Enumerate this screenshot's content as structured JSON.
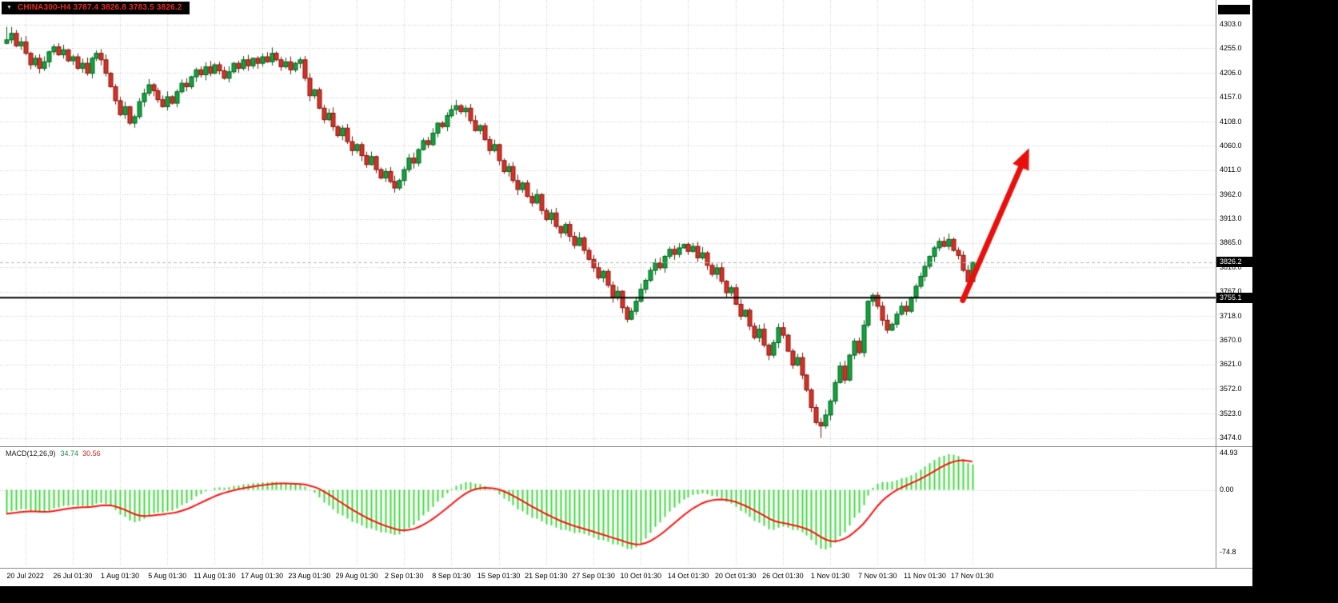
{
  "window": {
    "title_text": "CHINA300-H4 3787.4 3826.8 3783.5 3826.2",
    "symbol": "CHINA300",
    "timeframe": "H4"
  },
  "price_axis": {
    "labels": [
      "4303.0",
      "4255.0",
      "4206.0",
      "4157.0",
      "4108.0",
      "4060.0",
      "4011.0",
      "3962.0",
      "3913.0",
      "3865.0",
      "3816.0",
      "3767.0",
      "3718.0",
      "3670.0",
      "3621.0",
      "3572.0",
      "3523.0",
      "3474.0"
    ],
    "current_price_badge": "3826.2",
    "hline_badge": "3755.1"
  },
  "time_axis": {
    "labels": [
      "20 Jul 2022",
      "26 Jul 01:30",
      "1 Aug 01:30",
      "5 Aug 01:30",
      "11 Aug 01:30",
      "17 Aug 01:30",
      "23 Aug 01:30",
      "29 Aug 01:30",
      "2 Sep 01:30",
      "8 Sep 01:30",
      "15 Sep 01:30",
      "21 Sep 01:30",
      "27 Sep 01:30",
      "10 Oct 01:30",
      "14 Oct 01:30",
      "20 Oct 01:30",
      "26 Oct 01:30",
      "1 Nov 01:30",
      "7 Nov 01:30",
      "11 Nov 01:30",
      "17 Nov 01:30"
    ]
  },
  "macd_axis": {
    "labels": [
      "44.93",
      "0.00",
      "-74.8"
    ],
    "values": [
      44.93,
      0,
      -74.8
    ]
  },
  "indicator_label": {
    "name": "MACD(12,26,9)",
    "main": "34.74",
    "signal": "30.56"
  },
  "colors": {
    "up_candle": "#0fa43c",
    "up_border": "#085c20",
    "down_candle": "#d93025",
    "down_border": "#7a1810",
    "macd_histogram": "#3ddc3d",
    "macd_signal": "#ff1111",
    "arrow": "#e8100c",
    "hline": "#000000",
    "bid_line": "#b4b4b4",
    "grid": "#c9c9c9",
    "badge_bg": "#000000",
    "badge_text": "#ffffff",
    "title_text": "#ee2a21"
  },
  "chart_data": {
    "type": "candlestick",
    "title": "CHINA300-H4",
    "ohlc_display": {
      "open": 3787.4,
      "high": 3826.8,
      "low": 3783.5,
      "close": 3826.2
    },
    "ylim": [
      3474.0,
      4303.0
    ],
    "price_ticks": [
      4303,
      4255,
      4206,
      4157,
      4108,
      4060,
      4011,
      3962,
      3913,
      3865,
      3816,
      3767,
      3718,
      3670,
      3621,
      3572,
      3523,
      3474
    ],
    "first_open": 4265,
    "closes": [
      4272,
      4285,
      4260,
      4268,
      4245,
      4222,
      4235,
      4215,
      4228,
      4248,
      4258,
      4242,
      4252,
      4230,
      4238,
      4215,
      4225,
      4205,
      4235,
      4245,
      4232,
      4205,
      4178,
      4150,
      4122,
      4138,
      4105,
      4118,
      4148,
      4165,
      4182,
      4170,
      4152,
      4138,
      4158,
      4145,
      4168,
      4185,
      4178,
      4198,
      4212,
      4202,
      4218,
      4205,
      4222,
      4210,
      4195,
      4208,
      4225,
      4215,
      4232,
      4220,
      4235,
      4225,
      4238,
      4228,
      4245,
      4232,
      4218,
      4228,
      4212,
      4225,
      4232,
      4195,
      4160,
      4172,
      4135,
      4112,
      4125,
      4098,
      4080,
      4095,
      4068,
      4050,
      4062,
      4040,
      4022,
      4038,
      4012,
      3995,
      4008,
      3988,
      3975,
      3990,
      4012,
      4035,
      4025,
      4052,
      4070,
      4062,
      4085,
      4105,
      4098,
      4120,
      4132,
      4140,
      4128,
      4135,
      4110,
      4090,
      4100,
      4072,
      4050,
      4062,
      4030,
      4008,
      4018,
      3990,
      3972,
      3985,
      3958,
      3945,
      3962,
      3930,
      3912,
      3925,
      3898,
      3885,
      3902,
      3878,
      3860,
      3875,
      3850,
      3832,
      3815,
      3795,
      3808,
      3780,
      3755,
      3768,
      3735,
      3712,
      3728,
      3748,
      3772,
      3790,
      3810,
      3825,
      3815,
      3838,
      3852,
      3842,
      3855,
      3862,
      3848,
      3858,
      3835,
      3845,
      3820,
      3802,
      3815,
      3788,
      3765,
      3775,
      3742,
      3718,
      3730,
      3698,
      3675,
      3692,
      3660,
      3640,
      3665,
      3695,
      3680,
      3648,
      3620,
      3635,
      3600,
      3570,
      3535,
      3505,
      3498,
      3520,
      3548,
      3585,
      3618,
      3590,
      3640,
      3668,
      3645,
      3700,
      3748,
      3760,
      3738,
      3710,
      3690,
      3702,
      3722,
      3738,
      3728,
      3755,
      3778,
      3798,
      3818,
      3838,
      3855,
      3868,
      3858,
      3872,
      3850,
      3840,
      3810,
      3787,
      3826.2
    ],
    "low_override": {
      "index": 172,
      "low": 3474.0
    },
    "hline_price": 3755.1,
    "current_price": 3826.2,
    "labels_every_bars": 10,
    "indicator": {
      "type": "MACD",
      "fast": 12,
      "slow": 26,
      "signal": 9,
      "last_main": 34.74,
      "last_signal": 30.56,
      "scale_max": 44.93,
      "scale_min": -74.8
    },
    "annotation": {
      "shape": "arrow",
      "direction": "up-right",
      "from": {
        "bar": 202,
        "price": 3750
      },
      "to": {
        "bar": 216,
        "price": 4055
      }
    }
  }
}
